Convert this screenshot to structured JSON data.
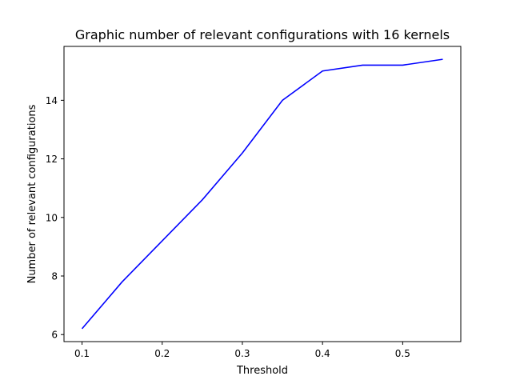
{
  "chart_data": {
    "type": "line",
    "title": "Graphic number of relevant configurations with 16 kernels",
    "xlabel": "Threshold",
    "ylabel": "Number of relevant configurations",
    "xlim": [
      0.0775,
      0.5725
    ],
    "ylim": [
      5.76,
      15.84
    ],
    "x_ticks": [
      0.1,
      0.2,
      0.3,
      0.4,
      0.5
    ],
    "x_tick_labels": [
      "0.1",
      "0.2",
      "0.3",
      "0.4",
      "0.5"
    ],
    "y_ticks": [
      6,
      8,
      10,
      12,
      14
    ],
    "y_tick_labels": [
      "6",
      "8",
      "10",
      "12",
      "14"
    ],
    "grid": false,
    "series": [
      {
        "color": "#0000ff",
        "x": [
          0.1,
          0.15,
          0.2,
          0.25,
          0.3,
          0.35,
          0.4,
          0.45,
          0.5,
          0.55
        ],
        "values": [
          6.2,
          7.8,
          9.2,
          10.6,
          12.2,
          14.0,
          15.0,
          15.2,
          15.2,
          15.4
        ]
      }
    ]
  }
}
